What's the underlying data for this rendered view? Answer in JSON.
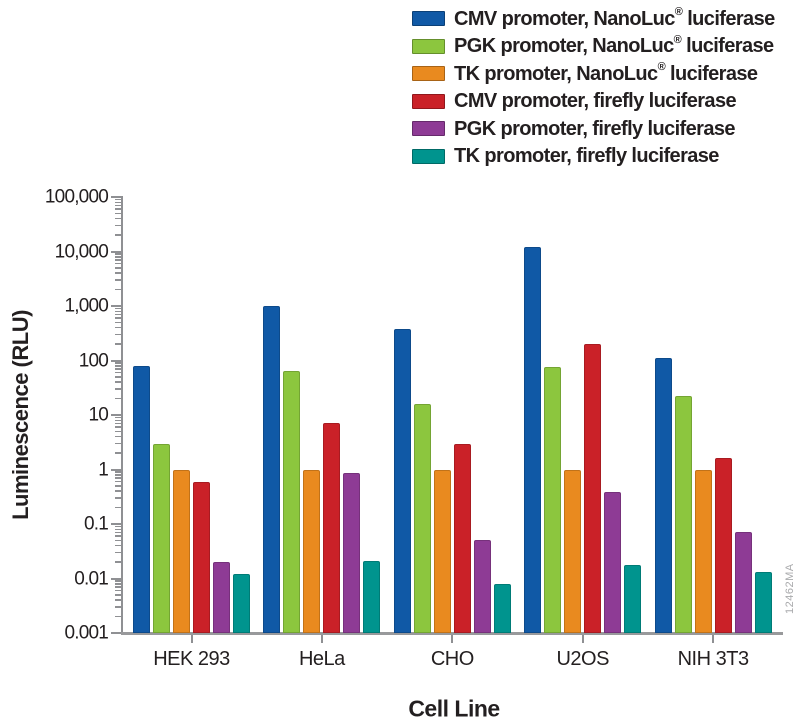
{
  "figure": {
    "watermark": "12462MA"
  },
  "chart_data": {
    "type": "bar",
    "title": "",
    "xlabel": "Cell Line",
    "ylabel": "Luminescence (RLU)",
    "y_scale": "log",
    "ylim": [
      0.001,
      100000
    ],
    "grid": false,
    "legend_position": "top-right",
    "y_tick_labels_top_to_bottom": [
      "100,000",
      "10,000",
      "1,000",
      "100",
      "10",
      "1",
      "0.1",
      "0.01",
      "0.001"
    ],
    "categories": [
      "HEK 293",
      "HeLa",
      "CHO",
      "U2OS",
      "NIH 3T3"
    ],
    "series": [
      {
        "name": "CMV promoter, NanoLuc® luciferase",
        "color": "#1059a6",
        "values": [
          80,
          1000,
          380,
          12000,
          110
        ]
      },
      {
        "name": "PGK promoter, NanoLuc® luciferase",
        "color": "#8cc63e",
        "values": [
          3,
          65,
          16,
          75,
          22
        ]
      },
      {
        "name": "TK promoter, NanoLuc® luciferase",
        "color": "#e98a1f",
        "values": [
          1,
          1,
          1,
          1,
          1
        ]
      },
      {
        "name": "CMV promoter, firefly luciferase",
        "color": "#ca2128",
        "values": [
          0.6,
          7,
          3,
          200,
          1.6
        ]
      },
      {
        "name": "PGK promoter, firefly luciferase",
        "color": "#8e3b95",
        "values": [
          0.02,
          0.85,
          0.05,
          0.38,
          0.07
        ]
      },
      {
        "name": "TK promoter, firefly luciferase",
        "color": "#00948e",
        "values": [
          0.012,
          0.021,
          0.008,
          0.018,
          0.013
        ]
      }
    ]
  }
}
